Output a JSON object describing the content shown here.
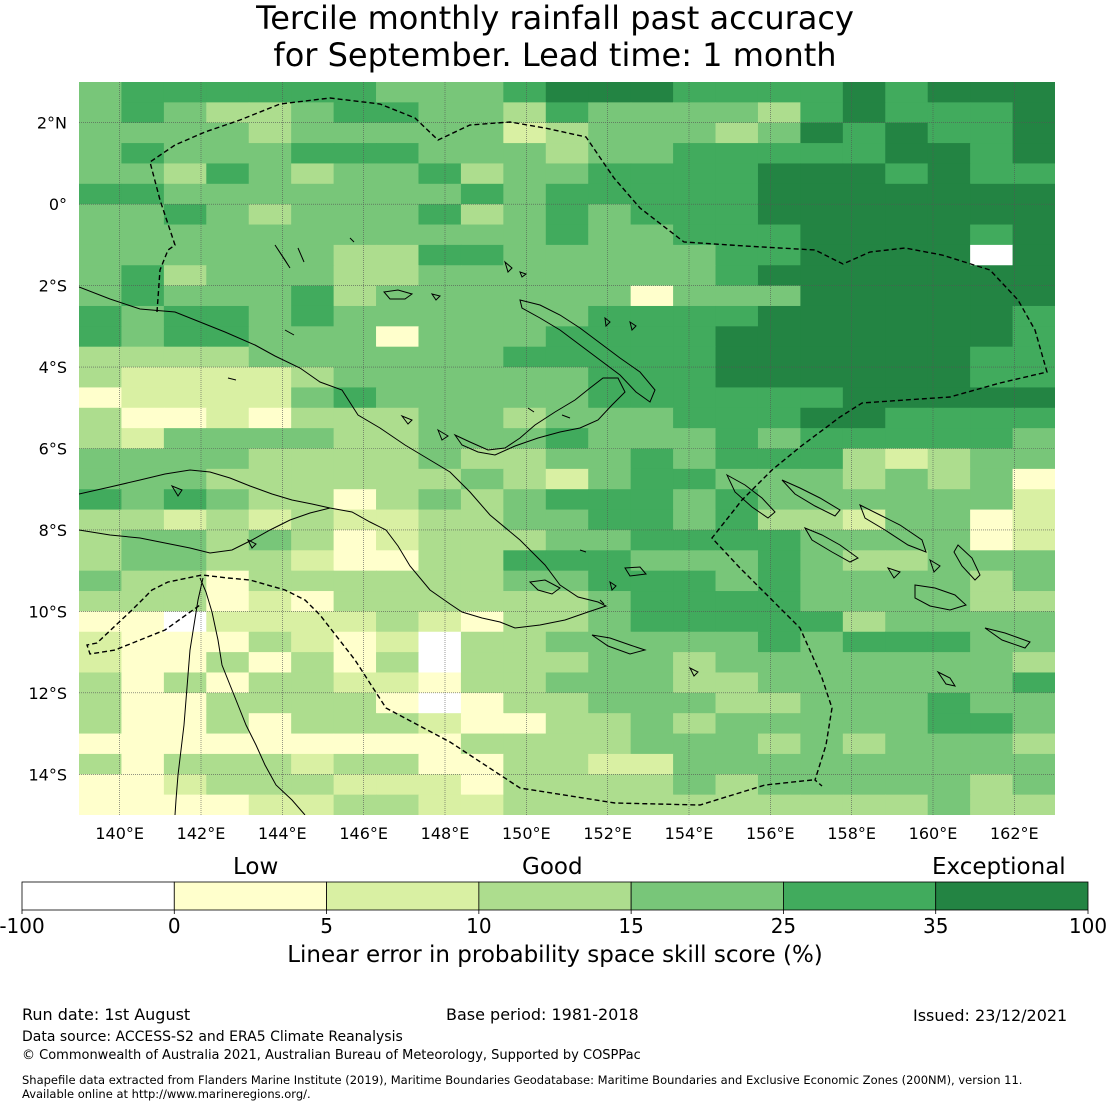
{
  "title": {
    "line1": "Tercile monthly rainfall past accuracy",
    "line2": "for September. Lead time: 1 month"
  },
  "map": {
    "extent": {
      "lon_min": 139,
      "lon_max": 163,
      "lat_min": -15,
      "lat_max": 3
    },
    "lat_ticks": [
      {
        "value": 2,
        "label": "2°N"
      },
      {
        "value": 0,
        "label": "0°"
      },
      {
        "value": -2,
        "label": "2°S"
      },
      {
        "value": -4,
        "label": "4°S"
      },
      {
        "value": -6,
        "label": "6°S"
      },
      {
        "value": -8,
        "label": "8°S"
      },
      {
        "value": -10,
        "label": "10°S"
      },
      {
        "value": -12,
        "label": "12°S"
      },
      {
        "value": -14,
        "label": "14°S"
      }
    ],
    "lon_ticks": [
      {
        "value": 140,
        "label": "140°E"
      },
      {
        "value": 142,
        "label": "142°E"
      },
      {
        "value": 144,
        "label": "144°E"
      },
      {
        "value": 146,
        "label": "146°E"
      },
      {
        "value": 148,
        "label": "148°E"
      },
      {
        "value": 150,
        "label": "150°E"
      },
      {
        "value": 152,
        "label": "152°E"
      },
      {
        "value": 154,
        "label": "154°E"
      },
      {
        "value": 156,
        "label": "156°E"
      },
      {
        "value": 158,
        "label": "158°E"
      },
      {
        "value": 160,
        "label": "160°E"
      },
      {
        "value": 162,
        "label": "162°E"
      }
    ]
  },
  "colorbar": {
    "bins": [
      {
        "from": "-100",
        "to": "0",
        "color": "#ffffff"
      },
      {
        "from": "0",
        "to": "5",
        "color": "#ffffcc"
      },
      {
        "from": "5",
        "to": "10",
        "color": "#d9f0a3"
      },
      {
        "from": "10",
        "to": "15",
        "color": "#addd8e"
      },
      {
        "from": "15",
        "to": "25",
        "color": "#78c679"
      },
      {
        "from": "25",
        "to": "35",
        "color": "#41ab5d"
      },
      {
        "from": "35",
        "to": "100",
        "color": "#238443"
      }
    ],
    "tick_labels": [
      "-100",
      "0",
      "5",
      "10",
      "15",
      "25",
      "35",
      "100"
    ],
    "categories": {
      "low": "Low",
      "good": "Good",
      "exceptional": "Exceptional"
    },
    "title": "Linear error in probability space skill score (%)"
  },
  "footer": {
    "run_date": "Run date: 1st August",
    "base_period": "Base period: 1981-2018",
    "issued": "Issued: 23/12/2021",
    "data_source": "Data source: ACCESS-S2 and ERA5 Climate Reanalysis",
    "copyright": "© Commonwealth of Australia 2021, Australian Bureau of Meteorology, Supported by COSPPac",
    "shapefile_line1": "Shapefile data extracted from Flanders Marine Institute (2019), Maritime Boundaries Geodatabase: Maritime Boundaries and Exclusive Economic Zones (200NM), version 11.",
    "shapefile_line2": "Available online at http://www.marineregions.org/."
  },
  "skill_grid": {
    "rows_from_north": [
      "45555554445666555565666",
      "45433455443544443565556",
      "44443444442344434656556",
      "45444555444344555556656",
      "44354344534455556665655",
      "55444444454555556666666",
      "44543444534545556666666",
      "44444444444544555666656",
      "44444433554444455666676",
      "45344433444444456666666",
      "45444534444441444666666",
      "54554544444455556666665",
      "54554441444555566666665",
      "33334444445555566666655",
      "32222344444455566666655",
      "12222454444455555566666",
      "31121333443444555665555",
      "32444433444544454555554",
      "44443333433445455532344",
      "44433333343245544434341",
      "54543313434555454444442",
      "33232322334455453324412",
      "34434312333445555444412",
      "34433211335554445433444",
      "43313333334455545444434",
      "33312133333345555444433",
      "11022223213345555534444",
      "21113212033444445455544",
      "21131313033344344444443",
      "31313322133444334444445",
      "31133331013344433444544",
      "31131333211334344444554",
      "11111111133334443434443",
      "31333233113322444444444",
      "11233322213333434444434",
      "11112233223333333333433"
    ]
  }
}
